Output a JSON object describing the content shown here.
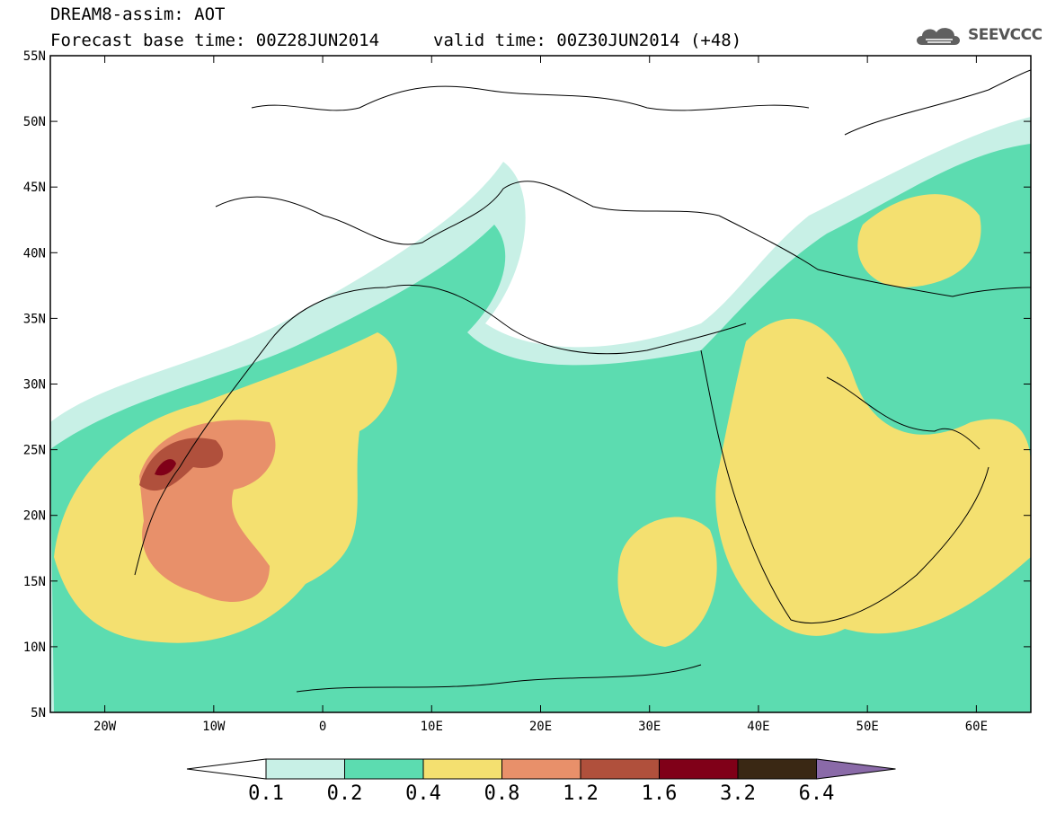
{
  "header": {
    "title": "DREAM8-assim: AOT",
    "base_time": "Forecast base time: 00Z28JUN2014",
    "valid_time": "valid time: 00Z30JUN2014 (+48)",
    "logo_text": "SEEVCCC",
    "logo_icon": "cloud-icon"
  },
  "map": {
    "lat_labels": [
      "55N",
      "50N",
      "45N",
      "40N",
      "35N",
      "30N",
      "25N",
      "20N",
      "15N",
      "10N",
      "5N"
    ],
    "lon_labels": [
      "20W",
      "10W",
      "0",
      "10E",
      "20E",
      "30E",
      "40E",
      "50E",
      "60E"
    ]
  },
  "colorbar": {
    "labels": [
      "0.1",
      "0.2",
      "0.4",
      "0.8",
      "1.2",
      "1.6",
      "3.2",
      "6.4"
    ],
    "colors": [
      "#ffffff",
      "#c8f0e6",
      "#5cdcb0",
      "#f4e070",
      "#e8906a",
      "#b0503c",
      "#800018",
      "#3a2814",
      "#8a6aa8"
    ]
  }
}
